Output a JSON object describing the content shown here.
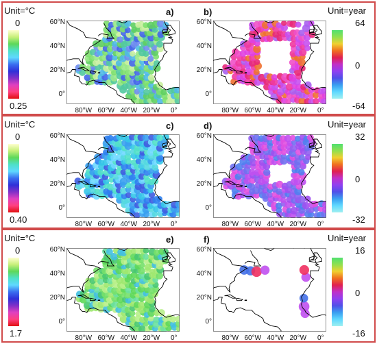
{
  "rows": [
    {
      "left": {
        "unit": "Unit=°C",
        "cbar_top": "0",
        "cbar_bottom": "0.25",
        "panel_label": "a)",
        "field": "green-blue"
      },
      "right": {
        "unit": "Unit=year",
        "cbar_top": "64",
        "cbar_mid": "0",
        "cbar_bottom": "-64",
        "panel_label": "b)",
        "field": "magenta-red"
      }
    },
    {
      "left": {
        "unit": "Unit=°C",
        "cbar_top": "0",
        "cbar_bottom": "0.40",
        "panel_label": "c)",
        "field": "blue-cyan"
      },
      "right": {
        "unit": "Unit=year",
        "cbar_top": "32",
        "cbar_mid": "0",
        "cbar_bottom": "-32",
        "panel_label": "d)",
        "field": "magenta-blue"
      }
    },
    {
      "left": {
        "unit": "Unit=°C",
        "cbar_top": "0",
        "cbar_bottom": "1.7",
        "panel_label": "e)",
        "field": "green"
      },
      "right": {
        "unit": "Unit=year",
        "cbar_top": "16",
        "cbar_mid": "0",
        "cbar_bottom": "-16",
        "panel_label": "f)",
        "field": "sparse"
      }
    }
  ],
  "axes": {
    "lat_ticks": [
      "60°N",
      "40°N",
      "20°N",
      "0°"
    ],
    "lon_ticks": [
      "80°W",
      "60°W",
      "40°W",
      "20°W",
      "0°"
    ]
  },
  "colors": {
    "frame": "#d04a4a",
    "land_outline": "#000000"
  }
}
